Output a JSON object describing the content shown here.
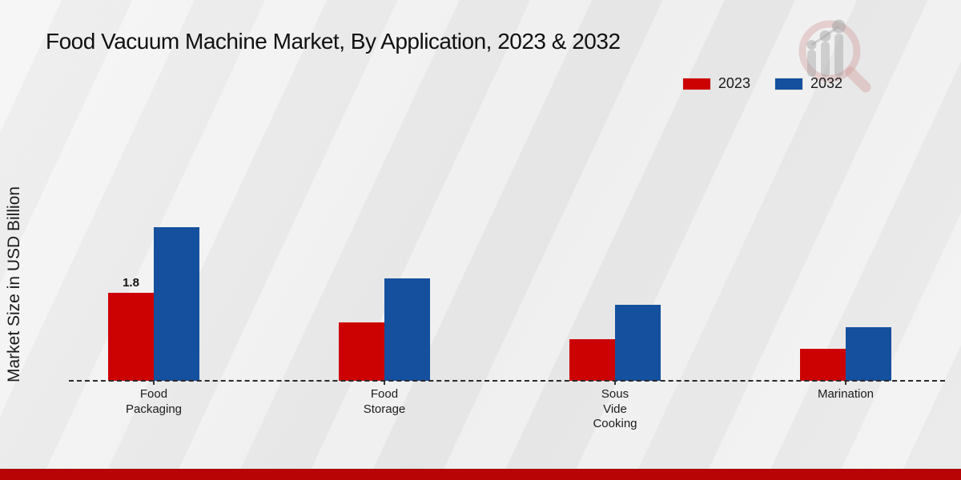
{
  "title": "Food Vacuum Machine Market, By Application, 2023 & 2032",
  "chart_data": {
    "type": "bar",
    "title": "Food Vacuum Machine Market, By Application, 2023 & 2032",
    "xlabel": "",
    "ylabel": "Market Size in USD Billion",
    "categories": [
      "Food\nPackaging",
      "Food\nStorage",
      "Sous\nVide\nCooking",
      "Marination"
    ],
    "series": [
      {
        "name": "2023",
        "color": "#cc0202",
        "values": [
          1.8,
          1.2,
          0.85,
          0.65
        ]
      },
      {
        "name": "2032",
        "color": "#14509e",
        "values": [
          3.15,
          2.1,
          1.55,
          1.1
        ]
      }
    ],
    "data_labels": [
      {
        "category": "Food Packaging",
        "series": "2023",
        "text": "1.8"
      }
    ],
    "ylim": [
      0,
      3.5
    ],
    "grid": false,
    "axis_style": "dashed-baseline-only",
    "legend_position": "top-right"
  },
  "footer": {
    "bar_color": "#b80404"
  }
}
